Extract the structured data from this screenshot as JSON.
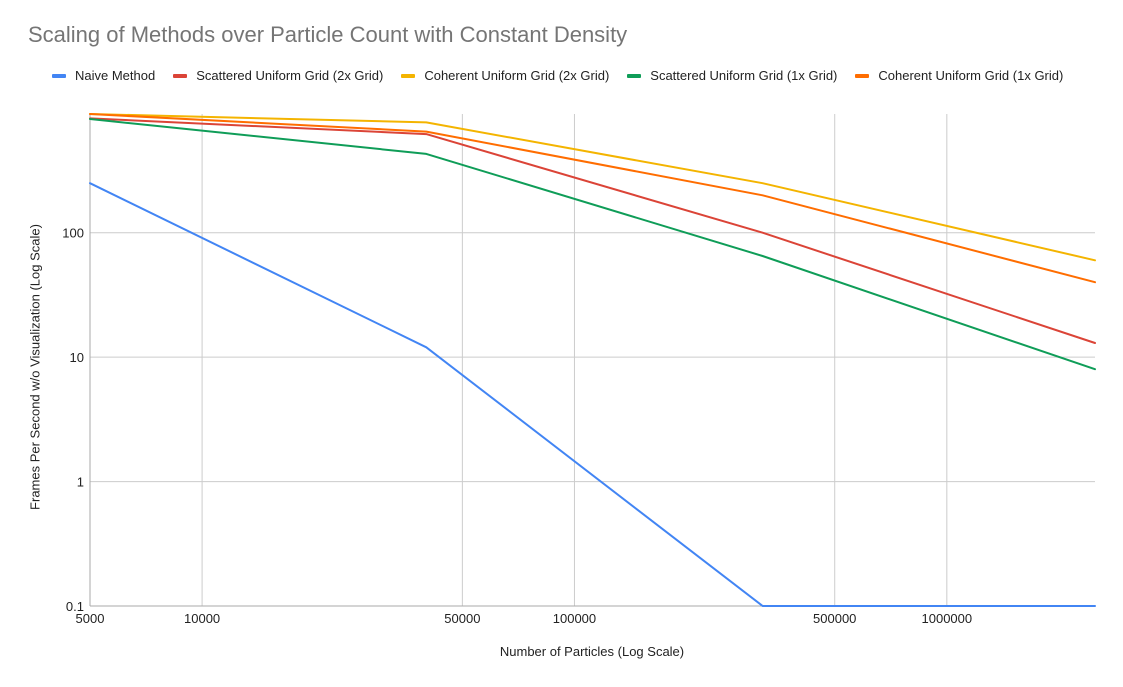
{
  "chart_data": {
    "type": "line",
    "title": "Scaling of Methods over Particle Count with Constant Density",
    "xlabel": "Number of Particles (Log Scale)",
    "ylabel": "Frames Per Second w/o Visualization (Log Scale)",
    "x_scale": "log",
    "y_scale": "log",
    "xlim": [
      5000,
      2500000
    ],
    "ylim": [
      0.1,
      900
    ],
    "grid": true,
    "legend_position": "top",
    "x_ticks": [
      5000,
      10000,
      50000,
      100000,
      500000,
      1000000
    ],
    "x_tick_labels": [
      "5000",
      "10000",
      "50000",
      "100000",
      "500000",
      "1000000"
    ],
    "y_ticks": [
      0.1,
      1,
      10,
      100
    ],
    "y_tick_labels": [
      "0.1",
      "1",
      "10",
      "100"
    ],
    "series": [
      {
        "name": "Naive Method",
        "color": "#4285f4",
        "points": [
          [
            5000,
            250
          ],
          [
            40000,
            12
          ],
          [
            320000,
            0.1
          ],
          [
            2500000,
            0.1
          ]
        ]
      },
      {
        "name": "Scattered Uniform Grid (2x Grid)",
        "color": "#db4437",
        "points": [
          [
            5000,
            830
          ],
          [
            40000,
            620
          ],
          [
            320000,
            100
          ],
          [
            2500000,
            13
          ]
        ]
      },
      {
        "name": "Coherent Uniform Grid (2x Grid)",
        "color": "#f4b400",
        "points": [
          [
            5000,
            900
          ],
          [
            40000,
            770
          ],
          [
            320000,
            250
          ],
          [
            2500000,
            60
          ]
        ]
      },
      {
        "name": "Scattered Uniform Grid (1x Grid)",
        "color": "#0f9d58",
        "points": [
          [
            5000,
            820
          ],
          [
            40000,
            430
          ],
          [
            320000,
            65
          ],
          [
            2500000,
            8
          ]
        ]
      },
      {
        "name": "Coherent Uniform Grid (1x Grid)",
        "color": "#ff6d00",
        "points": [
          [
            5000,
            900
          ],
          [
            40000,
            650
          ],
          [
            320000,
            200
          ],
          [
            2500000,
            40
          ]
        ]
      }
    ]
  }
}
